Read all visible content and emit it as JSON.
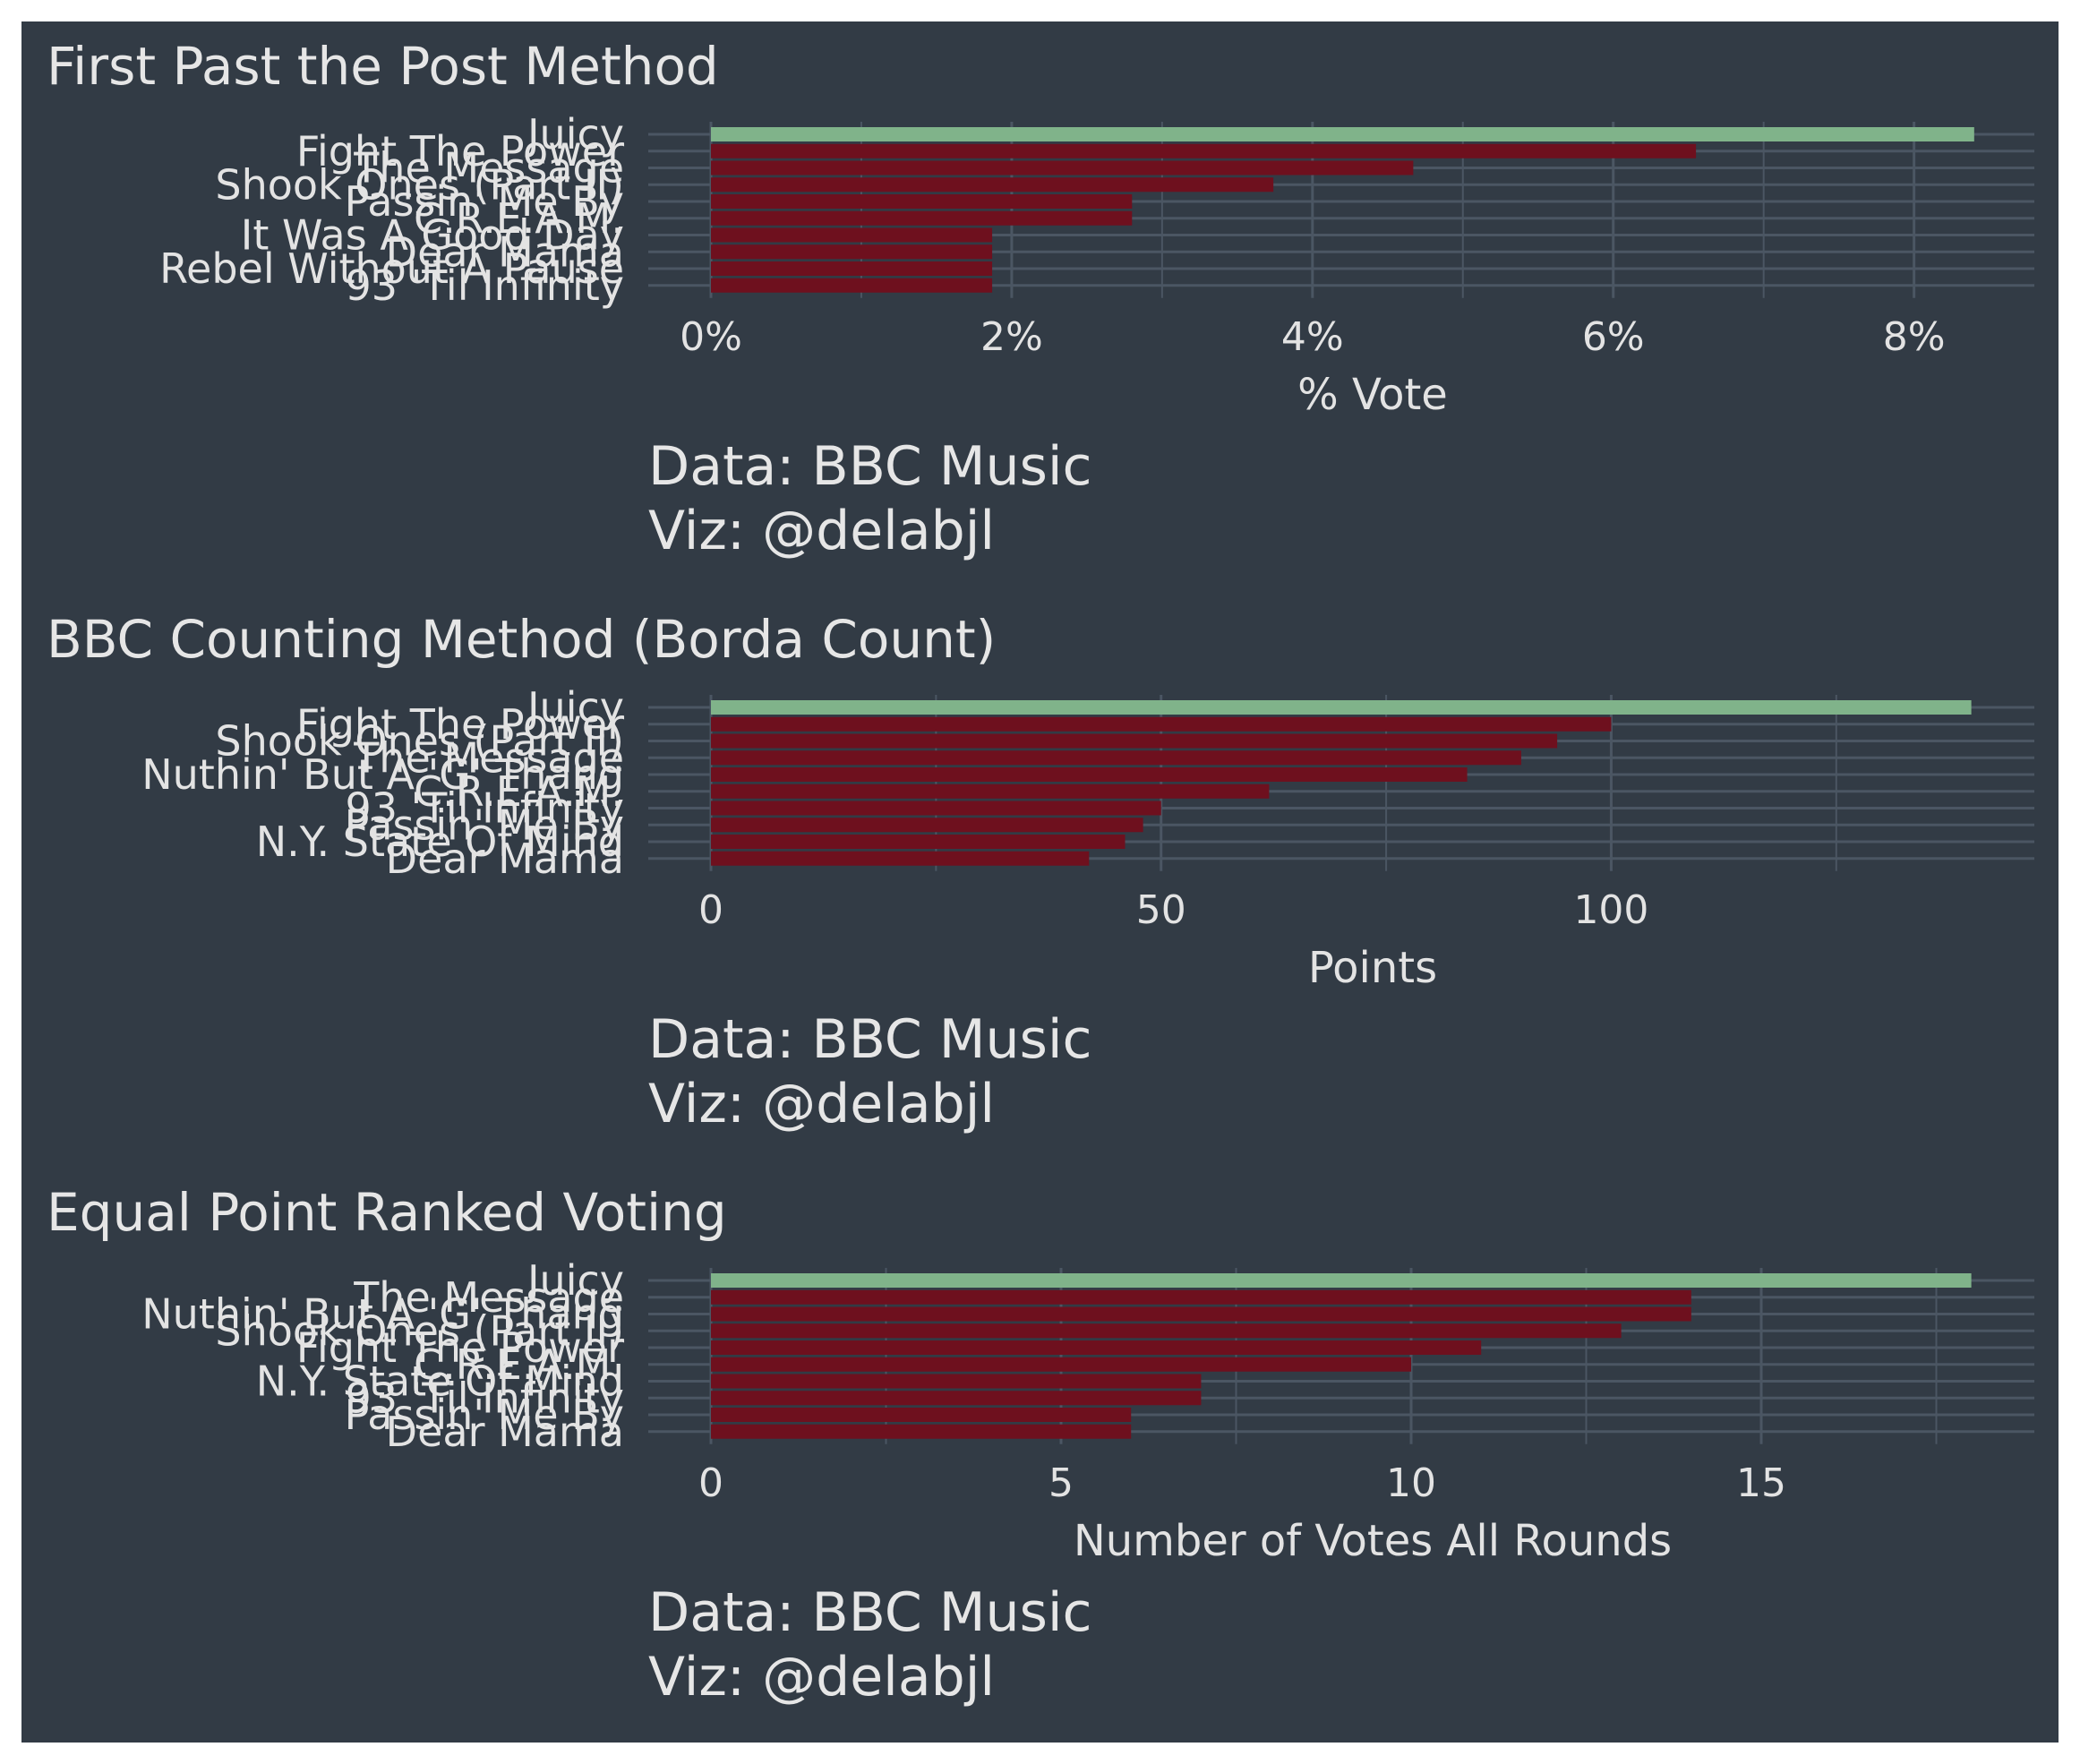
{
  "colors": {
    "background": "#323b45",
    "winner": "#80b38a",
    "others": "#6e101e",
    "gridline": "#4b5663",
    "text": "#e3e3e3"
  },
  "chart_data": [
    {
      "type": "bar",
      "orientation": "horizontal",
      "title": "First Past the Post Method",
      "xlabel": "% Vote",
      "ylabel": "",
      "caption": [
        "Data: BBC Music",
        " Viz: @delabjl"
      ],
      "categories": [
        "Juicy",
        "Fight The Power",
        "The Message",
        "Shook Ones (Part II)",
        "Passin' Me By",
        "C.R.E.A.M.",
        "It Was A Good Day",
        "Dear Mama",
        "Rebel Without A Pause",
        "93 'Til Infinity"
      ],
      "values": [
        8.4,
        6.55,
        4.67,
        3.74,
        2.8,
        2.8,
        1.87,
        1.87,
        1.87,
        1.87
      ],
      "highlight": [
        "winner",
        "other",
        "other",
        "other",
        "other",
        "other",
        "other",
        "other",
        "other",
        "other"
      ],
      "xlim": [
        0,
        8.8
      ],
      "ticks": [
        0,
        2,
        4,
        6,
        8
      ],
      "tick_labels": [
        "0%",
        "2%",
        "4%",
        "6%",
        "8%"
      ],
      "grid": true
    },
    {
      "type": "bar",
      "orientation": "horizontal",
      "title": "BBC Counting Method (Borda Count)",
      "xlabel": "Points",
      "ylabel": "",
      "caption": [
        "Data: BBC Music",
        " Viz: @delabjl"
      ],
      "categories": [
        "Juicy",
        "Fight The Power",
        "Shook Ones (Part II)",
        "The Message",
        "Nuthin' But A 'G' Thang",
        "C.R.E.A.M.",
        "93 'Til Infinity",
        "Passin' Me By",
        "N.Y. State Of Mind",
        "Dear Mama"
      ],
      "values": [
        140,
        100,
        94,
        90,
        84,
        62,
        50,
        48,
        46,
        42
      ],
      "highlight": [
        "winner",
        "other",
        "other",
        "other",
        "other",
        "other",
        "other",
        "other",
        "other",
        "other"
      ],
      "xlim": [
        0,
        147
      ],
      "ticks": [
        0,
        50,
        100
      ],
      "tick_labels": [
        "0",
        "50",
        "100"
      ],
      "grid": true
    },
    {
      "type": "bar",
      "orientation": "horizontal",
      "title": "Equal Point Ranked Voting",
      "xlabel": "Number of Votes All Rounds",
      "ylabel": "",
      "caption": [
        "Data: BBC Music",
        " Viz: @delabjl"
      ],
      "categories": [
        "Juicy",
        "The Message",
        "Nuthin' But A 'G' Thang",
        "Shook Ones (Part II)",
        "Fight The Power",
        "C.R.E.A.M.",
        "N.Y. State Of Mind",
        "93 'Til Infinity",
        "Passin' Me By",
        "Dear Mama"
      ],
      "values": [
        18,
        14,
        14,
        13,
        11,
        10,
        7,
        7,
        6,
        6
      ],
      "highlight": [
        "winner",
        "other",
        "other",
        "other",
        "other",
        "other",
        "other",
        "other",
        "other",
        "other"
      ],
      "xlim": [
        0,
        18.9
      ],
      "ticks": [
        0,
        5,
        10,
        15
      ],
      "tick_labels": [
        "0",
        "5",
        "10",
        "15"
      ],
      "grid": true
    }
  ]
}
